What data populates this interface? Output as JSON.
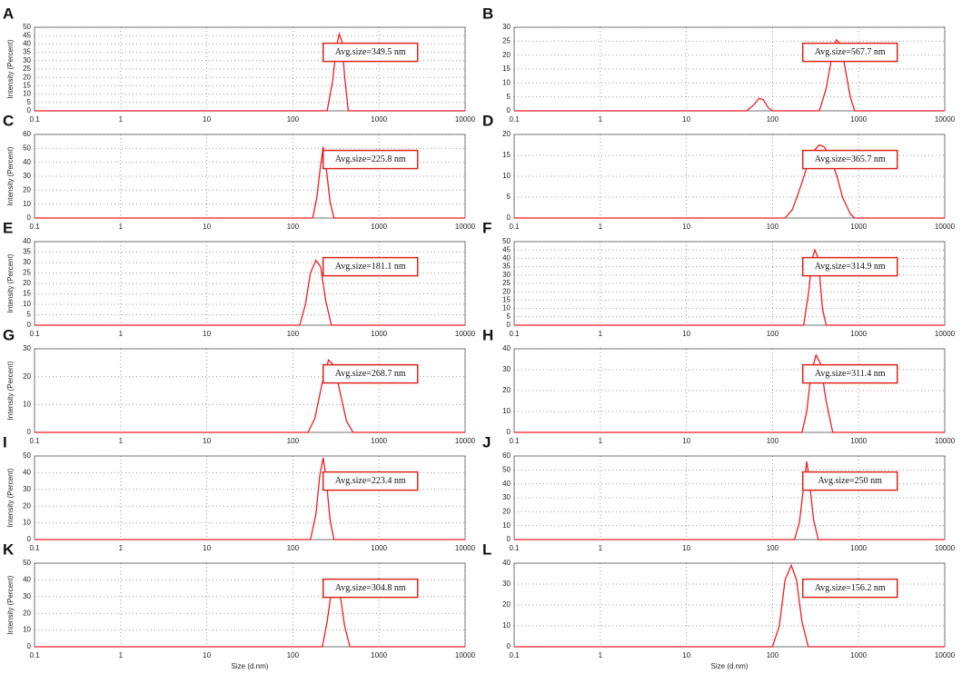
{
  "chart_data": [
    {
      "type": "line",
      "panel": "A",
      "ylabel": "Intensity (Percent)",
      "annotation": "Avg.size=349.5 nm",
      "log_x": true,
      "grid": true,
      "xlim": [
        0.1,
        10000
      ],
      "xticks": [
        0.1,
        1,
        10,
        100,
        1000,
        10000
      ],
      "ylim": [
        0,
        50
      ],
      "yticks": [
        0,
        5,
        10,
        15,
        20,
        25,
        30,
        35,
        40,
        45,
        50
      ],
      "x": [
        0.1,
        250,
        290,
        320,
        345,
        370,
        400,
        440,
        10000
      ],
      "series": [
        {
          "color": "#ee1c25",
          "values": [
            0,
            0,
            18,
            38,
            46,
            42,
            20,
            0,
            0
          ]
        }
      ]
    },
    {
      "type": "line",
      "panel": "B",
      "annotation": "Avg.size=567.7 nm",
      "log_x": true,
      "grid": true,
      "xlim": [
        0.1,
        10000
      ],
      "xticks": [
        0.1,
        1,
        10,
        100,
        1000,
        10000
      ],
      "ylim": [
        0,
        30
      ],
      "yticks": [
        0,
        5,
        10,
        15,
        20,
        25,
        30
      ],
      "x": [
        0.1,
        50,
        60,
        70,
        78,
        90,
        100,
        350,
        420,
        480,
        550,
        620,
        700,
        800,
        900,
        10000
      ],
      "series": [
        {
          "color": "#ee1c25",
          "values": [
            0,
            0,
            2,
            4.5,
            4,
            1,
            0,
            0,
            8,
            18,
            25.5,
            24,
            15,
            5,
            0,
            0
          ]
        }
      ]
    },
    {
      "type": "line",
      "panel": "C",
      "ylabel": "Intensity (Percent)",
      "annotation": "Avg.size=225.8 nm",
      "log_x": true,
      "grid": true,
      "xlim": [
        0.1,
        10000
      ],
      "xticks": [
        0.1,
        1,
        10,
        100,
        1000,
        10000
      ],
      "ylim": [
        0,
        60
      ],
      "yticks": [
        0,
        10,
        20,
        30,
        40,
        50,
        60
      ],
      "x": [
        0.1,
        170,
        190,
        210,
        225,
        245,
        270,
        300,
        10000
      ],
      "series": [
        {
          "color": "#ee1c25",
          "values": [
            0,
            0,
            15,
            38,
            51,
            35,
            12,
            0,
            0
          ]
        }
      ]
    },
    {
      "type": "line",
      "panel": "D",
      "annotation": "Avg.size=365.7 nm",
      "log_x": true,
      "grid": true,
      "xlim": [
        0.1,
        10000
      ],
      "xticks": [
        0.1,
        1,
        10,
        100,
        1000,
        10000
      ],
      "ylim": [
        0,
        20
      ],
      "yticks": [
        0,
        5,
        10,
        15,
        20
      ],
      "x": [
        0.1,
        140,
        170,
        200,
        250,
        300,
        350,
        400,
        480,
        560,
        650,
        800,
        900,
        10000
      ],
      "series": [
        {
          "color": "#ee1c25",
          "values": [
            0,
            0,
            2,
            6,
            12,
            16,
            17.5,
            17,
            14,
            10,
            5,
            1,
            0,
            0
          ]
        }
      ]
    },
    {
      "type": "line",
      "panel": "E",
      "ylabel": "Intensity (Percent)",
      "annotation": "Avg.size=181.1 nm",
      "log_x": true,
      "grid": true,
      "xlim": [
        0.1,
        10000
      ],
      "xticks": [
        0.1,
        1,
        10,
        100,
        1000,
        10000
      ],
      "ylim": [
        0,
        40
      ],
      "yticks": [
        0,
        5,
        10,
        15,
        20,
        25,
        30,
        35,
        40
      ],
      "x": [
        0.1,
        120,
        140,
        160,
        185,
        210,
        240,
        280,
        10000
      ],
      "series": [
        {
          "color": "#ee1c25",
          "values": [
            0,
            0,
            10,
            25,
            31,
            28,
            12,
            0,
            0
          ]
        }
      ]
    },
    {
      "type": "line",
      "panel": "F",
      "annotation": "Avg.size=314.9 nm",
      "log_x": true,
      "grid": true,
      "xlim": [
        0.1,
        10000
      ],
      "xticks": [
        0.1,
        1,
        10,
        100,
        1000,
        10000
      ],
      "ylim": [
        0,
        50
      ],
      "yticks": [
        0,
        5,
        10,
        15,
        20,
        25,
        30,
        35,
        40,
        45,
        50
      ],
      "x": [
        0.1,
        230,
        260,
        290,
        310,
        340,
        380,
        420,
        10000
      ],
      "series": [
        {
          "color": "#ee1c25",
          "values": [
            0,
            0,
            18,
            40,
            45,
            40,
            10,
            0,
            0
          ]
        }
      ]
    },
    {
      "type": "line",
      "panel": "G",
      "ylabel": "Intensity (Percent)",
      "annotation": "Avg.size=268.7 nm",
      "log_x": true,
      "grid": true,
      "xlim": [
        0.1,
        10000
      ],
      "xticks": [
        0.1,
        1,
        10,
        100,
        1000,
        10000
      ],
      "ylim": [
        0,
        30
      ],
      "yticks": [
        0,
        10,
        20,
        30
      ],
      "x": [
        0.1,
        150,
        180,
        220,
        260,
        300,
        350,
        420,
        500,
        10000
      ],
      "series": [
        {
          "color": "#ee1c25",
          "values": [
            0,
            0,
            5,
            18,
            26,
            24,
            15,
            4,
            0,
            0
          ]
        }
      ]
    },
    {
      "type": "line",
      "panel": "H",
      "annotation": "Avg.size=311.4 nm",
      "log_x": true,
      "grid": true,
      "xlim": [
        0.1,
        10000
      ],
      "xticks": [
        0.1,
        1,
        10,
        100,
        1000,
        10000
      ],
      "ylim": [
        0,
        40
      ],
      "yticks": [
        0,
        10,
        20,
        30,
        40
      ],
      "x": [
        0.1,
        220,
        250,
        280,
        320,
        360,
        420,
        500,
        10000
      ],
      "series": [
        {
          "color": "#ee1c25",
          "values": [
            0,
            0,
            10,
            28,
            37,
            33,
            15,
            0,
            0
          ]
        }
      ]
    },
    {
      "type": "line",
      "panel": "I",
      "ylabel": "Intensity (Percent)",
      "annotation": "Avg.size=223.4 nm",
      "log_x": true,
      "grid": true,
      "xlim": [
        0.1,
        10000
      ],
      "xticks": [
        0.1,
        1,
        10,
        100,
        1000,
        10000
      ],
      "ylim": [
        0,
        50
      ],
      "yticks": [
        0,
        10,
        20,
        30,
        40,
        50
      ],
      "x": [
        0.1,
        160,
        185,
        205,
        225,
        245,
        270,
        300,
        10000
      ],
      "series": [
        {
          "color": "#ee1c25",
          "values": [
            0,
            0,
            15,
            38,
            49,
            35,
            12,
            0,
            0
          ]
        }
      ]
    },
    {
      "type": "line",
      "panel": "J",
      "annotation": "Avg.size=250 nm",
      "log_x": true,
      "grid": true,
      "xlim": [
        0.1,
        10000
      ],
      "xticks": [
        0.1,
        1,
        10,
        100,
        1000,
        10000
      ],
      "ylim": [
        0,
        60
      ],
      "yticks": [
        0,
        10,
        20,
        30,
        40,
        50,
        60
      ],
      "x": [
        0.1,
        180,
        205,
        230,
        250,
        270,
        300,
        340,
        10000
      ],
      "series": [
        {
          "color": "#ee1c25",
          "values": [
            0,
            0,
            12,
            38,
            56,
            40,
            14,
            0,
            0
          ]
        }
      ]
    },
    {
      "type": "line",
      "panel": "K",
      "ylabel": "Intensity (Percent)",
      "xlabel": "Size (d.nm)",
      "annotation": "Avg.size=304.8 nm",
      "log_x": true,
      "grid": true,
      "xlim": [
        0.1,
        10000
      ],
      "xticks": [
        0.1,
        1,
        10,
        100,
        1000,
        10000
      ],
      "ylim": [
        0,
        50
      ],
      "yticks": [
        0,
        10,
        20,
        30,
        40,
        50
      ],
      "x": [
        0.1,
        220,
        250,
        280,
        310,
        350,
        400,
        460,
        10000
      ],
      "series": [
        {
          "color": "#ee1c25",
          "values": [
            0,
            0,
            15,
            33,
            40,
            33,
            12,
            0,
            0
          ]
        }
      ]
    },
    {
      "type": "line",
      "panel": "L",
      "xlabel": "Size (d.nm)",
      "annotation": "Avg.size=156.2 nm",
      "log_x": true,
      "grid": true,
      "xlim": [
        0.1,
        10000
      ],
      "xticks": [
        0.1,
        1,
        10,
        100,
        1000,
        10000
      ],
      "ylim": [
        0,
        40
      ],
      "yticks": [
        0,
        10,
        20,
        30,
        40
      ],
      "x": [
        0.1,
        100,
        120,
        140,
        165,
        190,
        220,
        260,
        10000
      ],
      "series": [
        {
          "color": "#ee1c25",
          "values": [
            0,
            0,
            10,
            32,
            39,
            32,
            12,
            0,
            0
          ]
        }
      ]
    }
  ]
}
